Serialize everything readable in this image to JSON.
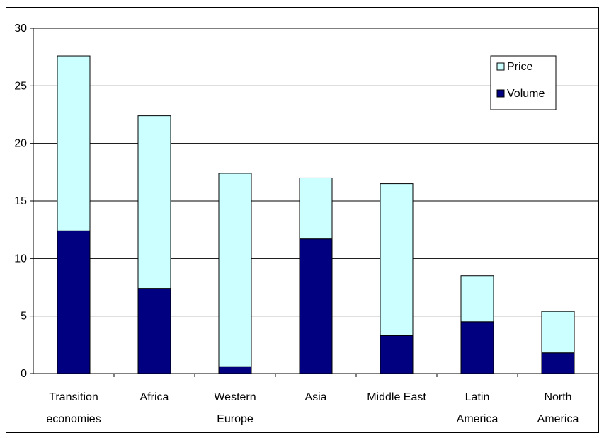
{
  "chart_data": {
    "type": "bar",
    "stacked": true,
    "categories": [
      [
        "Transition",
        "economies"
      ],
      [
        "Africa"
      ],
      [
        "Western",
        "Europe"
      ],
      [
        "Asia"
      ],
      [
        "Middle East"
      ],
      [
        "Latin",
        "America"
      ],
      [
        "North",
        "America"
      ]
    ],
    "series": [
      {
        "name": "Volume",
        "color": "#000080",
        "values": [
          12.4,
          7.4,
          0.6,
          11.7,
          3.3,
          4.5,
          1.8
        ]
      },
      {
        "name": "Price",
        "color": "#ccffff",
        "values": [
          15.2,
          15.0,
          16.8,
          5.3,
          13.2,
          4.0,
          3.6
        ]
      }
    ],
    "ylim": [
      0,
      30
    ],
    "yticks": [
      0,
      5,
      10,
      15,
      20,
      25,
      30
    ],
    "grid": true,
    "legend": {
      "position": "top-right",
      "order": [
        "Price",
        "Volume"
      ]
    }
  }
}
